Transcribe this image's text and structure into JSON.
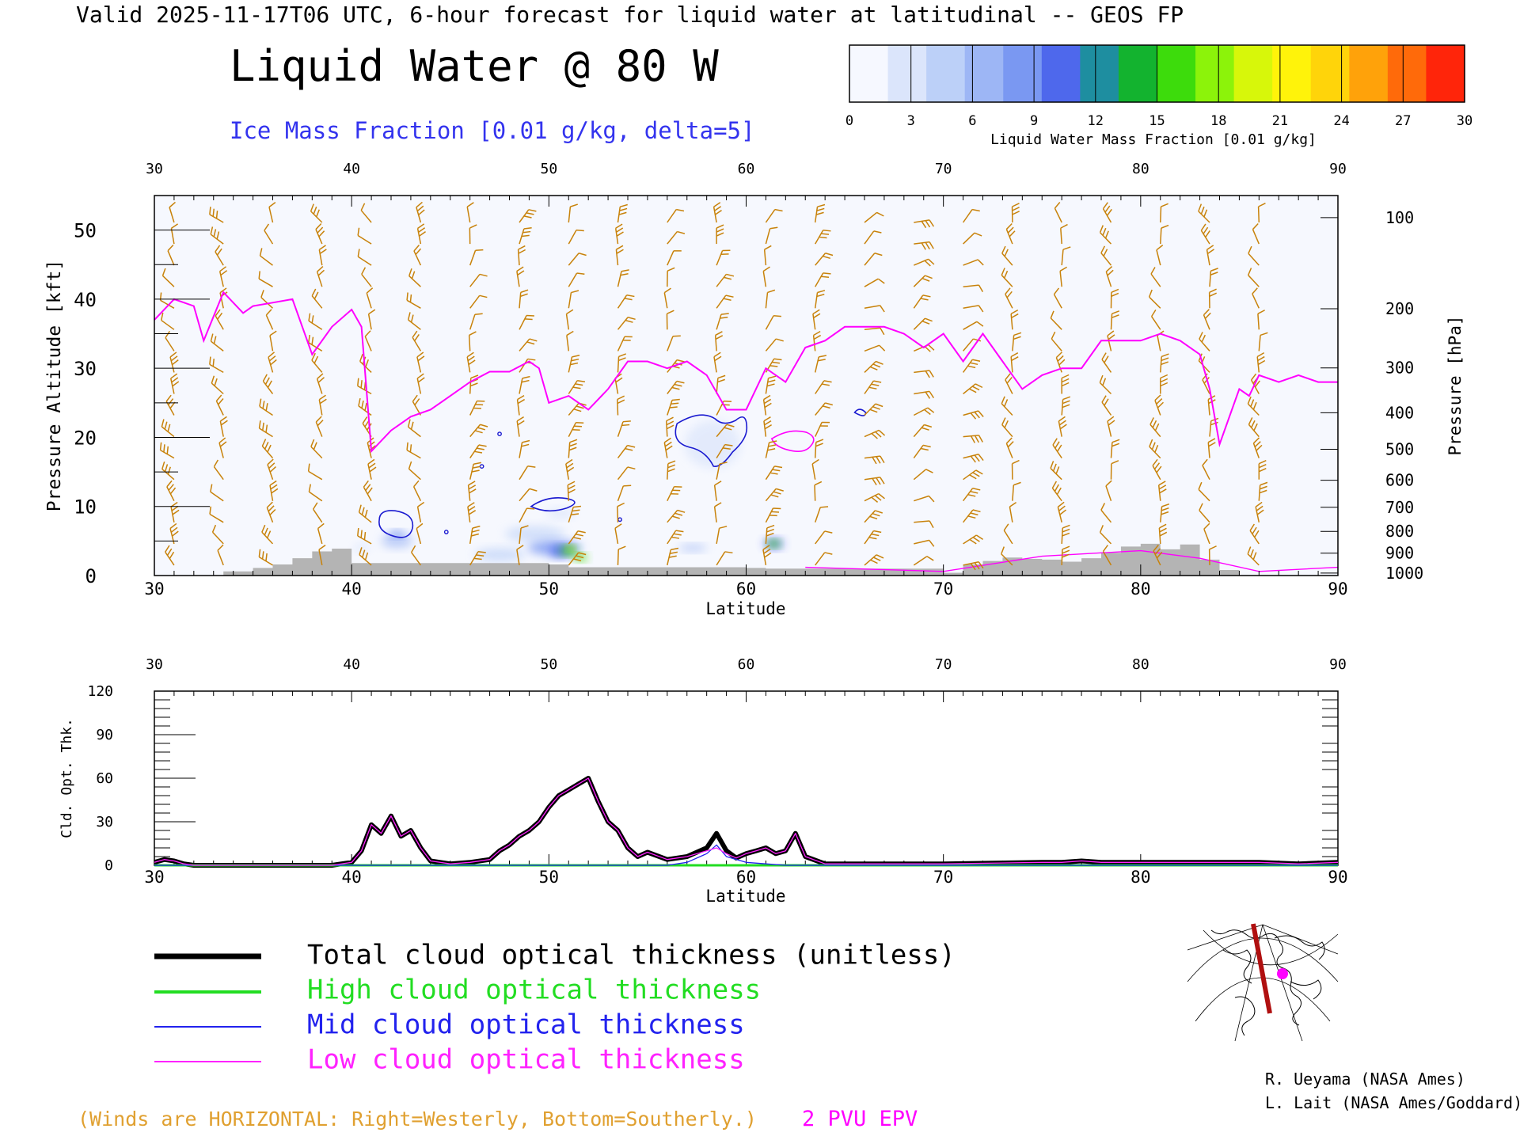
{
  "header": {
    "valid_line": "Valid 2025-11-17T06 UTC, 6-hour forecast for liquid water at latitudinal -- GEOS FP",
    "title": "Liquid Water @ 80 W",
    "subtitle": "Ice Mass Fraction [0.01 g/kg, delta=5]"
  },
  "colorbar": {
    "label": "Liquid Water Mass Fraction [0.01 g/kg]",
    "ticks": [
      "0",
      "3",
      "6",
      "9",
      "12",
      "15",
      "18",
      "21",
      "24",
      "27",
      "30"
    ],
    "colors": [
      "#f6f8ff",
      "#dbe5fb",
      "#bcd0f8",
      "#9db6f5",
      "#7a98f2",
      "#4e68ec",
      "#1e8ea0",
      "#13b32f",
      "#3ddc0c",
      "#8cf30a",
      "#d7f70a",
      "#fff30a",
      "#ffd40a",
      "#ffa20a",
      "#ff6a0a",
      "#ff250a"
    ]
  },
  "top_panel": {
    "x_ticks": [
      "30",
      "40",
      "50",
      "60",
      "70",
      "80",
      "90"
    ],
    "x_label": "Latitude",
    "y_label_left": "Pressure Altitude [kft]",
    "y_ticks_left": [
      "0",
      "10",
      "20",
      "30",
      "40",
      "50"
    ],
    "y_label_right": "Pressure [hPa]",
    "y_ticks_right": [
      "100",
      "200",
      "300",
      "400",
      "500",
      "600",
      "700",
      "800",
      "900",
      "1000"
    ],
    "tropopause_color": "#ff00ff",
    "ice_contour_color": "#1a1ad0",
    "wind_barb_color": "#c8820a",
    "terrain_color": "#b4b4b4"
  },
  "bottom_panel": {
    "y_label": "Cld. Opt. Thk.",
    "y_ticks": [
      "0",
      "30",
      "60",
      "90",
      "120"
    ],
    "x_ticks": [
      "30",
      "40",
      "50",
      "60",
      "70",
      "80",
      "90"
    ],
    "x_label": "Latitude"
  },
  "legend": [
    {
      "label": "Total cloud optical thickness (unitless)",
      "color": "#000000"
    },
    {
      "label": "High cloud optical thickness",
      "color": "#22dd22"
    },
    {
      "label": "Mid cloud optical thickness",
      "color": "#2222ee"
    },
    {
      "label": "Low cloud optical thickness",
      "color": "#ff22ff"
    }
  ],
  "footer": {
    "winds_note": "(Winds are HORIZONTAL: Right=Westerly, Bottom=Southerly.)",
    "pvu_label": "2 PVU EPV",
    "credit1": "R. Ueyama (NASA Ames)",
    "credit2": "L. Lait (NASA Ames/Goddard)"
  },
  "chart_data": [
    {
      "type": "line",
      "title": "Liquid Water @ 80 W",
      "xlabel": "Latitude",
      "ylabel": "Pressure Altitude [kft]",
      "xlim": [
        30,
        90
      ],
      "ylim": [
        0,
        55
      ],
      "series": [
        {
          "name": "2 PVU EPV",
          "x": [
            30,
            31,
            32,
            32.5,
            33.5,
            34.5,
            35,
            36,
            37,
            38,
            39,
            40,
            40.5,
            41,
            42,
            43,
            44,
            45,
            46,
            47,
            48,
            49,
            49.5,
            50,
            51,
            52,
            53,
            54,
            55,
            56,
            57,
            58,
            59,
            60,
            61,
            62,
            63,
            64,
            65,
            66,
            67,
            68,
            69,
            70,
            71,
            72,
            73,
            74,
            75,
            76,
            77,
            78,
            79,
            80,
            81,
            82,
            83,
            83.5,
            84,
            85,
            85.5,
            86,
            87,
            88,
            89,
            90
          ],
          "y": [
            37,
            40,
            39,
            34,
            41,
            38,
            39,
            39.5,
            40,
            32,
            36,
            38.5,
            36,
            18,
            21,
            23,
            24,
            26,
            28,
            29.5,
            29.5,
            31,
            30,
            25,
            26,
            24,
            27,
            31,
            31,
            30,
            31,
            29,
            24,
            24,
            30,
            28,
            33,
            34,
            36,
            36,
            36,
            35,
            33,
            35,
            31,
            35,
            31,
            27,
            29,
            30,
            30,
            34,
            34,
            34,
            35,
            34,
            32,
            27,
            19,
            27,
            26,
            29,
            28,
            29,
            28,
            28
          ],
          "color": "#ff00ff"
        }
      ]
    },
    {
      "type": "line",
      "title": "",
      "xlabel": "Latitude",
      "ylabel": "Cld. Opt. Thk.",
      "xlim": [
        30,
        90
      ],
      "ylim": [
        0,
        120
      ],
      "series": [
        {
          "name": "Total cloud optical thickness (unitless)",
          "x": [
            30,
            30.5,
            31,
            31.5,
            32,
            35,
            39,
            40,
            40.5,
            41,
            41.5,
            42,
            42.5,
            43,
            43.5,
            44,
            45,
            46,
            47,
            47.5,
            48,
            48.5,
            49,
            49.5,
            50,
            50.5,
            51,
            51.5,
            52,
            52.5,
            53,
            53.5,
            54,
            54.5,
            55,
            56,
            57,
            58,
            58.5,
            59,
            59.5,
            60,
            60.5,
            61,
            61.5,
            62,
            62.5,
            63,
            64,
            70,
            75,
            76,
            77,
            78,
            80,
            82,
            84,
            86,
            88,
            90
          ],
          "y": [
            2,
            4,
            3,
            1,
            0,
            0,
            0,
            2,
            10,
            28,
            22,
            34,
            20,
            24,
            12,
            3,
            1,
            2,
            4,
            10,
            14,
            20,
            24,
            30,
            40,
            48,
            52,
            56,
            60,
            44,
            30,
            24,
            12,
            6,
            9,
            4,
            6,
            12,
            22,
            10,
            5,
            8,
            10,
            12,
            8,
            10,
            22,
            6,
            1,
            1,
            2,
            2,
            3,
            2,
            2,
            2,
            2,
            2,
            1,
            2
          ],
          "color": "#000000"
        },
        {
          "name": "High cloud optical thickness",
          "x": [
            30,
            60,
            70,
            90
          ],
          "y": [
            0,
            0,
            0,
            0
          ],
          "color": "#22dd22"
        },
        {
          "name": "Mid cloud optical thickness",
          "x": [
            30,
            56,
            57,
            58,
            58.5,
            59,
            60,
            61,
            62,
            90
          ],
          "y": [
            0,
            0,
            2,
            8,
            14,
            6,
            2,
            1,
            0,
            0
          ],
          "color": "#2222ee"
        },
        {
          "name": "Low cloud optical thickness",
          "x": [
            30,
            30.5,
            31,
            31.5,
            32,
            35,
            39,
            40,
            40.5,
            41,
            41.5,
            42,
            42.5,
            43,
            43.5,
            44,
            45,
            46,
            47,
            47.5,
            48,
            48.5,
            49,
            49.5,
            50,
            50.5,
            51,
            51.5,
            52,
            52.5,
            53,
            53.5,
            54,
            54.5,
            55,
            56,
            57,
            58,
            58.5,
            59,
            59.5,
            60,
            60.5,
            61,
            61.5,
            62,
            62.5,
            63,
            64,
            70,
            75,
            76,
            77,
            78,
            80,
            82,
            84,
            86,
            88,
            90
          ],
          "y": [
            2,
            4,
            3,
            1,
            0,
            0,
            0,
            2,
            10,
            28,
            22,
            34,
            20,
            24,
            12,
            3,
            1,
            2,
            4,
            10,
            14,
            20,
            24,
            30,
            40,
            48,
            52,
            56,
            60,
            44,
            30,
            24,
            12,
            6,
            9,
            4,
            6,
            10,
            12,
            8,
            5,
            8,
            10,
            12,
            8,
            10,
            22,
            6,
            1,
            1,
            2,
            2,
            3,
            2,
            2,
            2,
            2,
            2,
            1,
            2
          ],
          "color": "#ff22ff"
        }
      ]
    }
  ]
}
